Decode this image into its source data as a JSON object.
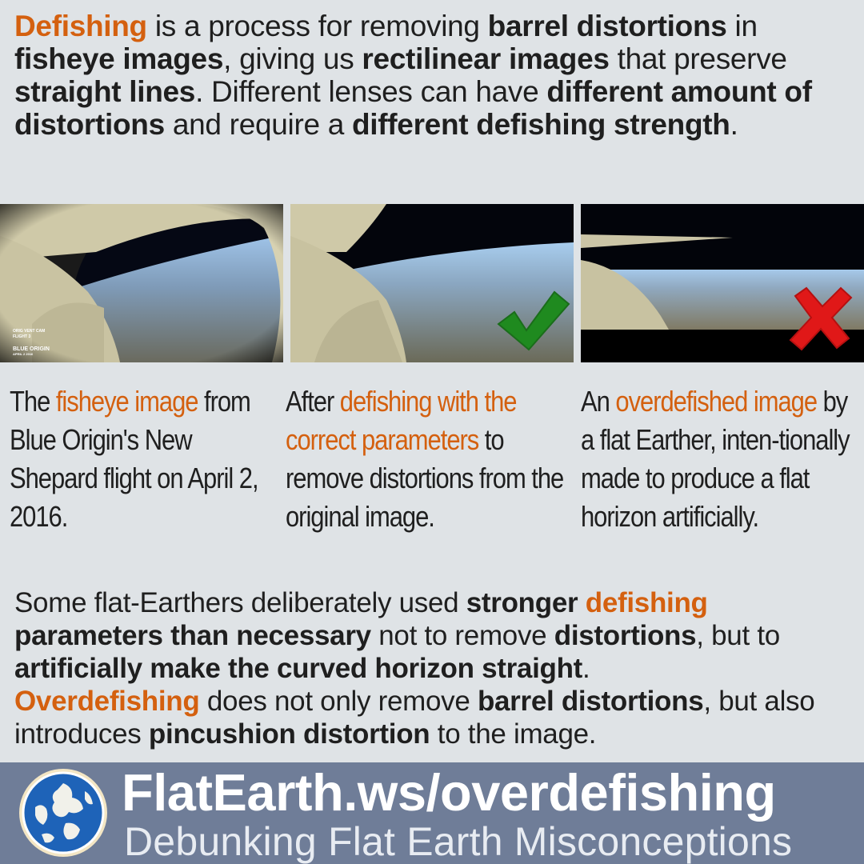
{
  "intro": {
    "t1": "Defishing",
    "t2": " is a process for removing ",
    "t3": "barrel distortions",
    "t4": " in ",
    "t5": "fisheye images",
    "t6": ", giving us ",
    "t7": "rectilinear images",
    "t8": " that preserve ",
    "t9": "straight lines",
    "t10": ". Different lenses can have ",
    "t11": "different amount of distortions",
    "t12": " and require a ",
    "t13": "different defishing strength",
    "t14": "."
  },
  "photos": [
    {
      "overlay_lines": [
        "ORIG VENT CAM",
        "FLIGHT 3",
        "BLUE ORIGIN",
        "APRIL 2 2016"
      ]
    },
    {
      "mark": "check-icon"
    },
    {
      "mark": "cross-icon"
    }
  ],
  "captions": [
    {
      "a": "The ",
      "b": "fisheye image",
      "c": " from Blue Origin's New Shepard flight on April 2, 2016."
    },
    {
      "a": "After ",
      "b": "defishing with the correct parameters",
      "c": " to remove distortions from the original image."
    },
    {
      "a": "An ",
      "b": "overdefished image",
      "c": " by a flat Earther, inten-tionally made to produce a flat horizon artificially."
    }
  ],
  "outro": {
    "t1": "Some flat-Earthers deliberately used ",
    "t2": "stronger ",
    "t3": "defishing",
    "t4": "parameters than necessary",
    "t5": " not to remove ",
    "t6": "distortions",
    "t7": ", but to ",
    "t8": "artificially make the curved horizon straight",
    "t9": ".",
    "t10": "Overdefishing",
    "t11": " does not only remove ",
    "t12": "barrel distortions",
    "t13": ", but also introduces ",
    "t14": "pincushion distortion",
    "t15": " to the image."
  },
  "footer": {
    "site": "FlatEarth.ws/overdefishing",
    "tagline": "Debunking Flat Earth Misconceptions",
    "logo_icon": "globe-logo-icon"
  },
  "colors": {
    "accent": "#d4600f",
    "background": "#dfe3e6",
    "footer": "#6f7d98",
    "check": "#1f8a1f",
    "cross": "#e01818"
  }
}
